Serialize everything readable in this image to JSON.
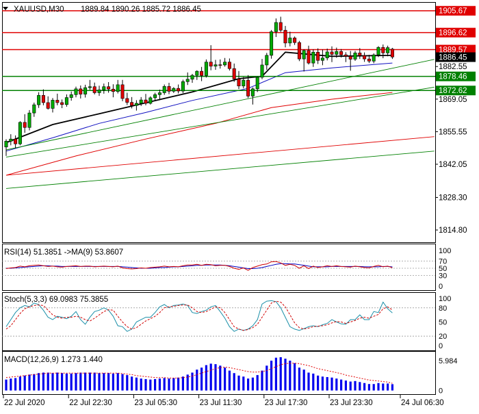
{
  "chart_data": {
    "type": "candlestick",
    "main": {
      "title": "XAUUSD,M30",
      "ohlc_text": "1889.84 1890.26 1885.72 1886.45",
      "ylim": [
        1810.0,
        1909.0
      ],
      "yticks": [
        "1814.80",
        "1828.30",
        "1842.05",
        "1855.55",
        "1869.05",
        "1882.55"
      ],
      "levels": [
        {
          "value": 1905.67,
          "label": "1905.67",
          "color": "#e00000"
        },
        {
          "value": 1896.62,
          "label": "1896.62",
          "color": "#e00000"
        },
        {
          "value": 1889.57,
          "label": "1889.57",
          "color": "#e00000"
        },
        {
          "value": 1878.46,
          "label": "1878.46",
          "color": "#008000"
        },
        {
          "value": 1872.62,
          "label": "1872.62",
          "color": "#008000"
        }
      ],
      "price_label": {
        "value": 1886.45,
        "label": "1886.45"
      },
      "candles": [
        [
          1849.2,
          1852.4,
          1845.5,
          1851.6
        ],
        [
          1851.6,
          1854.5,
          1849.9,
          1852.5
        ],
        [
          1852.5,
          1854.0,
          1848.7,
          1850.5
        ],
        [
          1850.5,
          1859.9,
          1849.9,
          1859.4
        ],
        [
          1859.4,
          1862.8,
          1855.1,
          1857.3
        ],
        [
          1857.3,
          1864.5,
          1856.1,
          1863.3
        ],
        [
          1863.3,
          1867.6,
          1861.7,
          1866.7
        ],
        [
          1866.7,
          1871.9,
          1865.4,
          1870.6
        ],
        [
          1870.6,
          1873.1,
          1866.5,
          1867.6
        ],
        [
          1867.6,
          1870.2,
          1864.7,
          1865.2
        ],
        [
          1865.2,
          1869.5,
          1863.5,
          1868.6
        ],
        [
          1868.6,
          1871.3,
          1866.5,
          1867.6
        ],
        [
          1867.6,
          1868.9,
          1865.3,
          1866.8
        ],
        [
          1866.8,
          1871.0,
          1865.9,
          1869.7
        ],
        [
          1869.7,
          1872.2,
          1868.4,
          1870.9
        ],
        [
          1870.9,
          1874.2,
          1869.8,
          1873.3
        ],
        [
          1873.3,
          1874.7,
          1869.3,
          1871.1
        ],
        [
          1871.1,
          1875.0,
          1869.7,
          1873.8
        ],
        [
          1873.8,
          1877.0,
          1872.9,
          1874.2
        ],
        [
          1874.2,
          1875.9,
          1871.0,
          1871.7
        ],
        [
          1871.7,
          1874.6,
          1870.4,
          1872.9
        ],
        [
          1872.9,
          1875.5,
          1871.3,
          1874.2
        ],
        [
          1874.2,
          1876.1,
          1871.7,
          1873.2
        ],
        [
          1873.2,
          1875.2,
          1869.8,
          1872.2
        ],
        [
          1872.2,
          1877.0,
          1871.4,
          1875.0
        ],
        [
          1875.0,
          1877.0,
          1868.2,
          1869.3
        ],
        [
          1869.3,
          1871.7,
          1866.6,
          1867.7
        ],
        [
          1867.7,
          1869.9,
          1865.2,
          1866.4
        ],
        [
          1866.4,
          1868.6,
          1864.3,
          1867.3
        ],
        [
          1867.3,
          1869.9,
          1866.2,
          1868.7
        ],
        [
          1868.7,
          1871.2,
          1866.5,
          1867.3
        ],
        [
          1867.3,
          1870.2,
          1866.8,
          1869.6
        ],
        [
          1869.6,
          1871.7,
          1868.6,
          1870.9
        ],
        [
          1870.9,
          1873.0,
          1868.6,
          1871.7
        ],
        [
          1871.7,
          1875.1,
          1870.8,
          1874.3
        ],
        [
          1874.3,
          1875.8,
          1871.1,
          1872.3
        ],
        [
          1872.3,
          1874.0,
          1871.6,
          1873.5
        ],
        [
          1873.5,
          1875.1,
          1871.4,
          1872.4
        ],
        [
          1872.4,
          1877.1,
          1871.5,
          1876.3
        ],
        [
          1876.3,
          1880.1,
          1874.9,
          1877.3
        ],
        [
          1877.3,
          1879.5,
          1875.8,
          1878.9
        ],
        [
          1878.9,
          1881.0,
          1877.0,
          1880.6
        ],
        [
          1880.6,
          1882.4,
          1876.5,
          1878.8
        ],
        [
          1878.8,
          1885.5,
          1878.0,
          1884.4
        ],
        [
          1884.4,
          1891.4,
          1881.0,
          1882.7
        ],
        [
          1882.7,
          1885.3,
          1881.2,
          1883.3
        ],
        [
          1883.3,
          1885.5,
          1881.7,
          1883.2
        ],
        [
          1883.2,
          1886.1,
          1882.5,
          1884.4
        ],
        [
          1884.4,
          1885.9,
          1880.9,
          1881.7
        ],
        [
          1881.7,
          1883.8,
          1876.2,
          1877.4
        ],
        [
          1877.4,
          1880.7,
          1873.2,
          1874.5
        ],
        [
          1874.5,
          1878.2,
          1873.5,
          1876.9
        ],
        [
          1876.9,
          1879.0,
          1869.5,
          1870.3
        ],
        [
          1870.3,
          1873.9,
          1866.8,
          1873.3
        ],
        [
          1873.3,
          1878.4,
          1872.0,
          1878.1
        ],
        [
          1878.1,
          1885.7,
          1877.3,
          1883.2
        ],
        [
          1883.2,
          1888.2,
          1881.2,
          1887.2
        ],
        [
          1887.2,
          1897.7,
          1885.8,
          1897.0
        ],
        [
          1897.0,
          1902.5,
          1894.8,
          1900.8
        ],
        [
          1900.8,
          1903.2,
          1896.9,
          1897.6
        ],
        [
          1897.6,
          1899.4,
          1890.5,
          1892.3
        ],
        [
          1892.3,
          1897.0,
          1890.9,
          1894.4
        ],
        [
          1894.4,
          1895.0,
          1891.5,
          1892.5
        ],
        [
          1892.5,
          1893.2,
          1884.8,
          1885.7
        ],
        [
          1885.7,
          1889.7,
          1880.5,
          1889.2
        ],
        [
          1889.2,
          1891.2,
          1883.4,
          1884.0
        ],
        [
          1884.0,
          1889.7,
          1882.4,
          1888.5
        ],
        [
          1888.5,
          1890.1,
          1883.6,
          1885.1
        ],
        [
          1885.1,
          1889.6,
          1883.1,
          1886.1
        ],
        [
          1886.1,
          1890.0,
          1885.1,
          1888.6
        ],
        [
          1888.6,
          1890.9,
          1884.4,
          1887.6
        ],
        [
          1887.6,
          1890.4,
          1886.2,
          1888.8
        ],
        [
          1888.8,
          1889.8,
          1886.3,
          1887.4
        ],
        [
          1887.4,
          1888.5,
          1884.4,
          1886.8
        ],
        [
          1886.8,
          1889.0,
          1880.8,
          1885.6
        ],
        [
          1885.6,
          1889.0,
          1884.9,
          1888.2
        ],
        [
          1888.2,
          1890.2,
          1885.7,
          1887.1
        ],
        [
          1887.1,
          1888.4,
          1884.5,
          1885.7
        ],
        [
          1885.7,
          1887.4,
          1884.0,
          1884.8
        ],
        [
          1884.8,
          1888.0,
          1883.9,
          1887.4
        ],
        [
          1887.4,
          1891.0,
          1886.5,
          1890.5
        ],
        [
          1890.5,
          1891.7,
          1886.0,
          1888.2
        ],
        [
          1888.2,
          1891.2,
          1886.8,
          1890.4
        ],
        [
          1889.8,
          1890.3,
          1885.7,
          1886.5
        ]
      ],
      "lines": [
        {
          "name": "ma-black",
          "color": "#000000",
          "width": 1.8,
          "points": [
            [
              0,
              1851.0
            ],
            [
              10,
              1858.5
            ],
            [
              20,
              1863.0
            ],
            [
              30,
              1867.5
            ],
            [
              40,
              1872.0
            ],
            [
              50,
              1877.5
            ],
            [
              55,
              1878.5
            ],
            [
              60,
              1888.5
            ],
            [
              70,
              1886.8
            ],
            [
              83,
              1887.2
            ]
          ]
        },
        {
          "name": "ma-blue",
          "color": "#1010c0",
          "width": 1.0,
          "points": [
            [
              0,
              1847.5
            ],
            [
              10,
              1853.0
            ],
            [
              20,
              1859.0
            ],
            [
              30,
              1863.5
            ],
            [
              40,
              1868.5
            ],
            [
              52,
              1873.5
            ],
            [
              60,
              1880.0
            ],
            [
              70,
              1882.0
            ],
            [
              83,
              1884.0
            ]
          ]
        },
        {
          "name": "ma-red",
          "color": "#e00000",
          "width": 1.0,
          "points": [
            [
              0,
              1837.5
            ],
            [
              15,
              1845.5
            ],
            [
              30,
              1852.5
            ],
            [
              45,
              1859.0
            ],
            [
              57,
              1865.5
            ],
            [
              70,
              1869.0
            ],
            [
              83,
              1871.8
            ]
          ]
        },
        {
          "name": "trend-green-1",
          "color": "#008000",
          "width": 0.9,
          "points": [
            [
              0,
              1848.0
            ],
            [
              92,
              1885.5
            ]
          ]
        },
        {
          "name": "trend-green-2",
          "color": "#008000",
          "width": 0.9,
          "points": [
            [
              0,
              1845.0
            ],
            [
              92,
              1874.0
            ]
          ]
        },
        {
          "name": "trend-red-long",
          "color": "#e00000",
          "width": 0.9,
          "points": [
            [
              0,
              1837.5
            ],
            [
              92,
              1853.5
            ]
          ]
        },
        {
          "name": "trend-green-long",
          "color": "#008000",
          "width": 0.9,
          "points": [
            [
              0,
              1832.0
            ],
            [
              92,
              1847.5
            ]
          ]
        }
      ]
    },
    "rsi": {
      "title": "RSI(14) 51.3851  ->MA(9) 53.8607",
      "yticks": [
        "100",
        "70",
        "50",
        "30",
        "0"
      ],
      "levels": [
        70,
        50,
        30
      ],
      "rsi": [
        49,
        51,
        52,
        56,
        54,
        57,
        58,
        59,
        57,
        55,
        56,
        54,
        53,
        55,
        56,
        57,
        55,
        56,
        56,
        54,
        55,
        56,
        55,
        54,
        56,
        51,
        49,
        48,
        49,
        51,
        50,
        52,
        53,
        54,
        56,
        54,
        55,
        54,
        57,
        59,
        59,
        61,
        58,
        61,
        60,
        57,
        58,
        58,
        55,
        50,
        47,
        51,
        44,
        52,
        56,
        60,
        62,
        68,
        69,
        65,
        58,
        61,
        58,
        50,
        57,
        49,
        56,
        52,
        54,
        57,
        55,
        57,
        55,
        54,
        53,
        56,
        54,
        52,
        51,
        55,
        58,
        54,
        56,
        51.4
      ],
      "ma": [
        50,
        50,
        51,
        52,
        53,
        54,
        55,
        56,
        57,
        57,
        56,
        56,
        55,
        55,
        55,
        55,
        55,
        55,
        55,
        55,
        55,
        55,
        55,
        55,
        55,
        54,
        53,
        52,
        51,
        50,
        50,
        50,
        51,
        52,
        52,
        53,
        54,
        54,
        55,
        56,
        57,
        58,
        58,
        59,
        59,
        59,
        59,
        58,
        57,
        55,
        53,
        51,
        49,
        49,
        50,
        52,
        55,
        58,
        61,
        63,
        63,
        62,
        62,
        60,
        58,
        56,
        54,
        54,
        54,
        54,
        55,
        55,
        55,
        55,
        55,
        55,
        55,
        54,
        54,
        54,
        54,
        55,
        55,
        53.9
      ]
    },
    "stoch": {
      "title": "Stoch(5,3,3) 69.0983 75.3855",
      "yticks": [
        "100",
        "80",
        "50",
        "20",
        "0"
      ],
      "levels": [
        80,
        20
      ],
      "main": [
        40,
        55,
        70,
        80,
        85,
        82,
        90,
        87,
        75,
        60,
        55,
        62,
        60,
        57,
        62,
        72,
        55,
        45,
        60,
        72,
        75,
        80,
        75,
        62,
        42,
        40,
        30,
        35,
        50,
        55,
        60,
        60,
        70,
        82,
        87,
        80,
        85,
        86,
        88,
        85,
        70,
        68,
        72,
        75,
        82,
        85,
        72,
        58,
        40,
        30,
        35,
        32,
        35,
        42,
        55,
        88,
        94,
        95,
        93,
        80,
        60,
        40,
        35,
        32,
        36,
        40,
        42,
        40,
        44,
        47,
        55,
        50,
        46,
        45,
        55,
        55,
        65,
        55,
        55,
        72,
        70,
        92,
        78,
        69.1
      ],
      "signal": [
        35,
        42,
        55,
        68,
        78,
        82,
        85,
        86,
        85,
        75,
        65,
        60,
        58,
        60,
        60,
        62,
        60,
        55,
        52,
        58,
        65,
        72,
        76,
        75,
        62,
        50,
        40,
        35,
        38,
        45,
        52,
        57,
        62,
        70,
        80,
        82,
        83,
        85,
        86,
        86,
        80,
        72,
        70,
        72,
        77,
        82,
        80,
        70,
        55,
        40,
        35,
        32,
        34,
        38,
        45,
        60,
        75,
        90,
        94,
        92,
        82,
        65,
        48,
        38,
        35,
        37,
        40,
        41,
        42,
        44,
        48,
        51,
        50,
        47,
        50,
        53,
        58,
        60,
        58,
        62,
        66,
        78,
        82,
        75.4
      ]
    },
    "macd": {
      "title": "MACD(12,26,9) 1.273 1.440",
      "yticks": [
        "5.984",
        "0"
      ],
      "ylim": [
        -0.6,
        7.8
      ],
      "hist": [
        2.2,
        2.4,
        2.5,
        2.8,
        3.0,
        3.2,
        3.3,
        3.5,
        3.6,
        3.6,
        3.5,
        3.6,
        3.5,
        3.4,
        3.4,
        3.5,
        3.6,
        3.6,
        3.6,
        3.6,
        3.5,
        3.5,
        3.5,
        3.4,
        3.5,
        3.3,
        3.1,
        2.8,
        2.6,
        2.4,
        2.3,
        2.2,
        2.3,
        2.4,
        2.5,
        2.4,
        2.5,
        2.6,
        2.8,
        3.2,
        3.6,
        4.2,
        4.6,
        5.1,
        5.4,
        5.3,
        5.0,
        4.6,
        4.0,
        3.5,
        3.0,
        2.8,
        2.4,
        2.6,
        3.1,
        4.0,
        5.0,
        6.0,
        6.6,
        6.7,
        6.4,
        6.0,
        5.5,
        4.6,
        4.2,
        3.6,
        3.4,
        3.0,
        2.8,
        2.7,
        2.6,
        2.4,
        2.2,
        2.0,
        1.8,
        1.9,
        1.7,
        1.5,
        1.3,
        1.3,
        1.5,
        1.4,
        1.4,
        1.27
      ],
      "signal": [
        2.6,
        2.7,
        2.8,
        2.9,
        3.0,
        3.1,
        3.2,
        3.3,
        3.4,
        3.5,
        3.5,
        3.5,
        3.5,
        3.5,
        3.5,
        3.5,
        3.5,
        3.5,
        3.5,
        3.5,
        3.5,
        3.5,
        3.5,
        3.5,
        3.5,
        3.4,
        3.3,
        3.2,
        3.0,
        2.9,
        2.8,
        2.7,
        2.6,
        2.6,
        2.6,
        2.5,
        2.5,
        2.5,
        2.6,
        2.7,
        2.9,
        3.2,
        3.5,
        3.8,
        4.1,
        4.4,
        4.6,
        4.7,
        4.6,
        4.4,
        4.2,
        4.0,
        3.8,
        3.7,
        3.7,
        3.8,
        4.0,
        4.4,
        4.8,
        5.2,
        5.4,
        5.5,
        5.5,
        5.4,
        5.2,
        5.0,
        4.7,
        4.4,
        4.2,
        4.0,
        3.8,
        3.6,
        3.4,
        3.1,
        2.9,
        2.7,
        2.5,
        2.3,
        2.1,
        2.0,
        1.9,
        1.8,
        1.7,
        1.44
      ]
    },
    "xticks": [
      "22 Jul 2020",
      "22 Jul 22:30",
      "23 Jul 05:30",
      "23 Jul 11:30",
      "23 Jul 17:30",
      "23 Jul 23:30",
      "24 Jul 06:30"
    ],
    "colors": {
      "bull": "#00aa00",
      "bear": "#dd0000",
      "wick": "#000000",
      "rsi": "#d00000",
      "rsi_ma": "#0000c0",
      "stoch": "#1a8fa8",
      "stoch_signal": "#d00000",
      "macd": "#0000ee",
      "macd_signal": "#e00000",
      "grid": "#9a9a9a"
    }
  }
}
